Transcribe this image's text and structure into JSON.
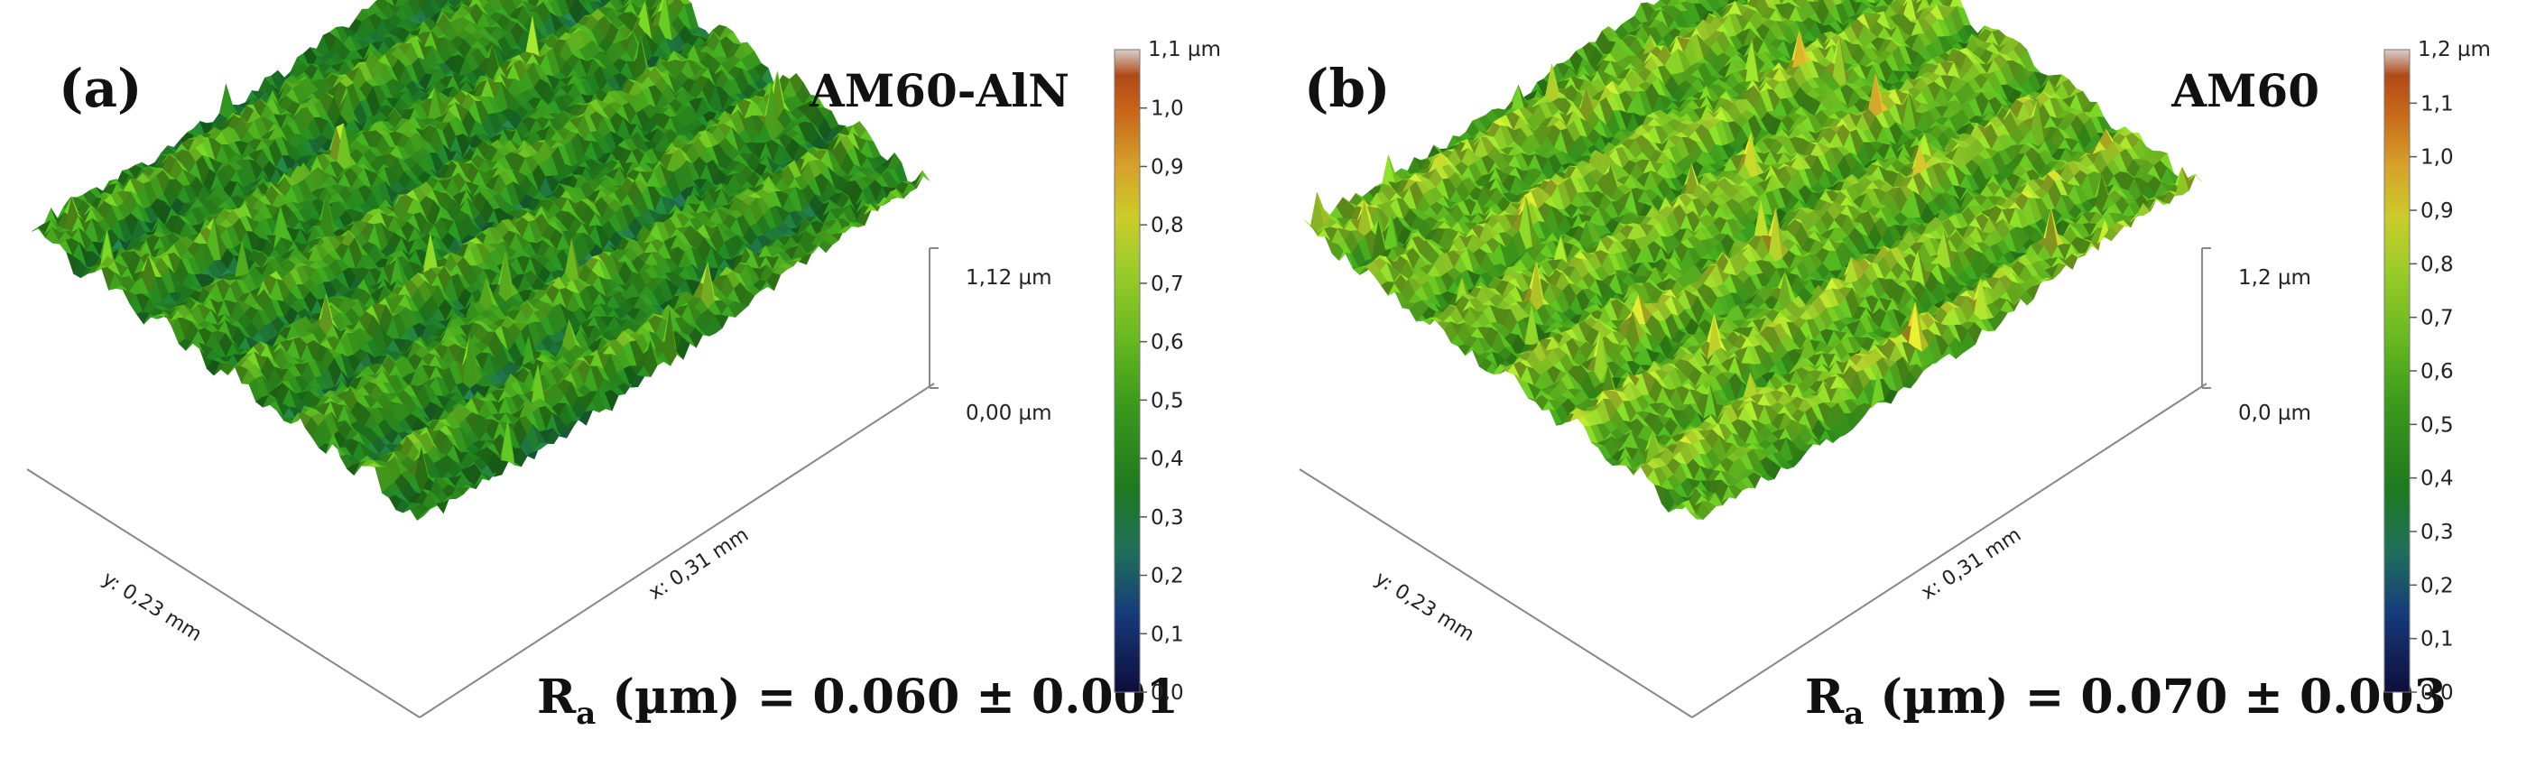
{
  "chart_data": [
    {
      "type": "surface",
      "panel_label": "(a)",
      "title": "AM60-AlN",
      "x_axis_label": "x: 0,31 mm",
      "y_axis_label": "y: 0,23 mm",
      "z_axis": {
        "max_label": "1,12 µm",
        "min_label": "0,00 µm",
        "range": [
          0.0,
          1.12
        ]
      },
      "colorbar": {
        "range": [
          0.0,
          1.1
        ],
        "top_label": "1,1 µm",
        "ticks": [
          "0,0",
          "0,1",
          "0,2",
          "0,3",
          "0,4",
          "0,5",
          "0,6",
          "0,7",
          "0,8",
          "0,9",
          "1,0"
        ]
      },
      "surface": {
        "mean_height": 0.45,
        "seed": 7
      },
      "ra": {
        "prefix": "R",
        "subscript": "a",
        "suffix": " (µm) = 0.060 ± 0.001",
        "value": 0.06,
        "error": 0.001
      }
    },
    {
      "type": "surface",
      "panel_label": "(b)",
      "title": "AM60",
      "x_axis_label": "x: 0,31 mm",
      "y_axis_label": "y: 0,23 mm",
      "z_axis": {
        "max_label": "1,2 µm",
        "min_label": "0,0 µm",
        "range": [
          0.0,
          1.2
        ]
      },
      "colorbar": {
        "range": [
          0.0,
          1.2
        ],
        "top_label": "1,2 µm",
        "ticks": [
          "0,0",
          "0,1",
          "0,2",
          "0,3",
          "0,4",
          "0,5",
          "0,6",
          "0,7",
          "0,8",
          "0,9",
          "1,0",
          "1,1"
        ]
      },
      "surface": {
        "mean_height": 0.66,
        "seed": 13
      },
      "ra": {
        "prefix": "R",
        "subscript": "a",
        "suffix": " (µm) = 0.070 ± 0.003",
        "value": 0.07,
        "error": 0.003
      }
    }
  ],
  "colors": {
    "colormap": [
      "#0d0d3a",
      "#163a7a",
      "#1f6f5a",
      "#1e7a1e",
      "#3c9a1c",
      "#6cbb20",
      "#9ccc2a",
      "#cccc2a",
      "#d6a02a",
      "#c8681a",
      "#b04a18",
      "#d8d0cc"
    ]
  }
}
